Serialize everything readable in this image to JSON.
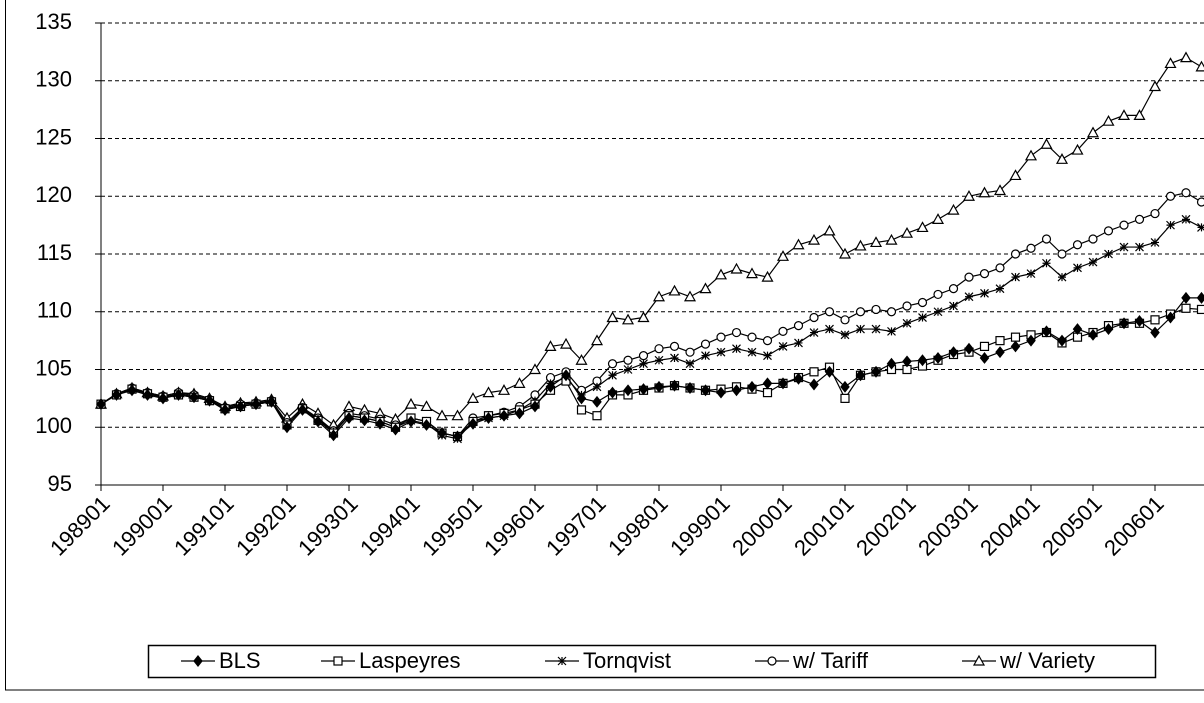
{
  "chart_data": {
    "type": "line",
    "categories": [
      "198901",
      null,
      null,
      null,
      "199001",
      null,
      null,
      null,
      "199101",
      null,
      null,
      null,
      "199201",
      null,
      null,
      null,
      "199301",
      null,
      null,
      null,
      "199401",
      null,
      null,
      null,
      "199501",
      null,
      null,
      null,
      "199601",
      null,
      null,
      null,
      "199701",
      null,
      null,
      null,
      "199801",
      null,
      null,
      null,
      "199901",
      null,
      null,
      null,
      "200001",
      null,
      null,
      null,
      "200101",
      null,
      null,
      null,
      "200201",
      null,
      null,
      null,
      "200301",
      null,
      null,
      null,
      "200401",
      null,
      null,
      null,
      "200501",
      null,
      null,
      null,
      "200601",
      null,
      null,
      null
    ],
    "ylim": [
      95,
      135
    ],
    "yticks": [
      95,
      100,
      105,
      110,
      115,
      120,
      125,
      130,
      135
    ],
    "grid": true,
    "series": [
      {
        "name": "BLS",
        "color": "#000000",
        "marker": "diamond",
        "values": [
          102.0,
          102.8,
          103.2,
          102.8,
          102.5,
          102.8,
          102.6,
          102.3,
          101.5,
          101.8,
          102.0,
          102.2,
          100.0,
          101.5,
          100.5,
          99.3,
          100.8,
          100.6,
          100.3,
          99.8,
          100.5,
          100.2,
          99.5,
          99.2,
          100.3,
          100.8,
          101.0,
          101.2,
          101.8,
          103.5,
          104.5,
          102.5,
          102.2,
          103.0,
          103.2,
          103.3,
          103.5,
          103.6,
          103.4,
          103.2,
          103.0,
          103.2,
          103.5,
          103.8,
          103.8,
          104.2,
          103.7,
          104.8,
          103.5,
          104.5,
          104.8,
          105.5,
          105.7,
          105.8,
          106.0,
          106.5,
          106.8,
          106.0,
          106.5,
          107.0,
          107.5,
          108.3,
          107.5,
          108.5,
          108.0,
          108.5,
          109.0,
          109.2,
          108.2,
          109.5,
          111.2,
          111.2
        ]
      },
      {
        "name": "Laspeyres",
        "color": "#000000",
        "marker": "square",
        "values": [
          102.0,
          102.8,
          103.3,
          102.9,
          102.6,
          102.8,
          102.6,
          102.3,
          101.6,
          101.8,
          102.0,
          102.2,
          100.2,
          101.6,
          100.6,
          99.5,
          101.0,
          100.8,
          100.5,
          100.0,
          100.8,
          100.5,
          99.5,
          99.2,
          100.5,
          101.0,
          101.2,
          101.5,
          102.0,
          103.2,
          104.0,
          101.5,
          101.0,
          102.8,
          102.8,
          103.2,
          103.4,
          103.6,
          103.4,
          103.2,
          103.3,
          103.5,
          103.3,
          103.0,
          103.8,
          104.3,
          104.8,
          105.2,
          102.5,
          104.5,
          104.8,
          105.0,
          105.0,
          105.3,
          105.8,
          106.3,
          106.5,
          107.0,
          107.5,
          107.8,
          108.0,
          108.2,
          107.3,
          107.8,
          108.2,
          108.8,
          109.0,
          109.0,
          109.3,
          109.8,
          110.3,
          110.2
        ]
      },
      {
        "name": "Tornqvist",
        "color": "#000000",
        "marker": "star",
        "values": [
          102.0,
          102.8,
          103.3,
          102.9,
          102.6,
          102.9,
          102.7,
          102.3,
          101.6,
          101.9,
          102.0,
          102.2,
          100.2,
          101.6,
          100.7,
          99.6,
          101.0,
          100.8,
          100.5,
          100.0,
          100.6,
          100.3,
          99.3,
          99.0,
          100.5,
          100.8,
          101.0,
          101.5,
          102.3,
          103.8,
          104.3,
          102.8,
          103.5,
          104.5,
          105.0,
          105.5,
          105.8,
          106.0,
          105.5,
          106.2,
          106.5,
          106.8,
          106.5,
          106.2,
          107.0,
          107.3,
          108.2,
          108.5,
          108.0,
          108.5,
          108.5,
          108.3,
          109.0,
          109.5,
          110.0,
          110.5,
          111.3,
          111.6,
          112.0,
          113.0,
          113.3,
          114.2,
          113.0,
          113.8,
          114.3,
          115.0,
          115.6,
          115.6,
          116.0,
          117.5,
          118.0,
          117.3
        ]
      },
      {
        "name": "w/ Tariff",
        "color": "#000000",
        "marker": "circle",
        "values": [
          102.0,
          102.9,
          103.4,
          103.0,
          102.7,
          103.0,
          102.8,
          102.4,
          101.7,
          102.0,
          102.1,
          102.3,
          100.4,
          101.7,
          100.8,
          99.7,
          101.2,
          101.0,
          100.7,
          100.2,
          100.8,
          100.5,
          99.5,
          99.2,
          100.8,
          101.0,
          101.3,
          101.8,
          102.8,
          104.3,
          104.8,
          103.2,
          104.0,
          105.5,
          105.8,
          106.2,
          106.8,
          107.0,
          106.5,
          107.2,
          107.8,
          108.2,
          107.8,
          107.5,
          108.3,
          108.8,
          109.5,
          110.0,
          109.3,
          110.0,
          110.2,
          110.0,
          110.5,
          110.8,
          111.5,
          112.0,
          113.0,
          113.3,
          113.8,
          115.0,
          115.5,
          116.3,
          115.0,
          115.8,
          116.3,
          117.0,
          117.5,
          118.0,
          118.5,
          120.0,
          120.3,
          119.5
        ]
      },
      {
        "name": "w/ Variety",
        "color": "#000000",
        "marker": "triangle",
        "values": [
          102.0,
          102.9,
          103.4,
          103.0,
          102.7,
          103.0,
          102.9,
          102.5,
          101.8,
          102.1,
          102.2,
          102.4,
          100.8,
          102.0,
          101.2,
          100.2,
          101.8,
          101.5,
          101.2,
          100.7,
          102.0,
          101.8,
          101.0,
          101.0,
          102.5,
          103.0,
          103.2,
          103.8,
          105.0,
          107.0,
          107.2,
          105.8,
          107.5,
          109.5,
          109.3,
          109.5,
          111.3,
          111.8,
          111.3,
          112.0,
          113.2,
          113.7,
          113.3,
          113.0,
          114.8,
          115.8,
          116.2,
          117.0,
          115.0,
          115.7,
          116.0,
          116.2,
          116.8,
          117.3,
          118.0,
          118.8,
          120.0,
          120.3,
          120.5,
          121.8,
          123.5,
          124.5,
          123.2,
          124.0,
          125.5,
          126.5,
          127.0,
          127.0,
          129.5,
          131.5,
          132.0,
          131.2
        ]
      }
    ]
  }
}
